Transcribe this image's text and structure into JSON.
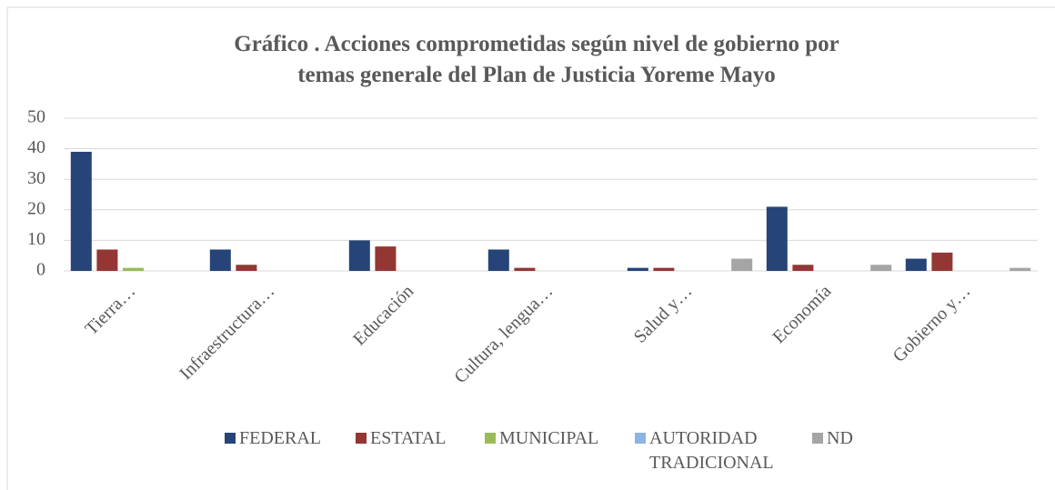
{
  "chart_data": {
    "type": "bar",
    "title": "Gráfico . Acciones comprometidas según nivel de gobierno por temas generale del  Plan de Justicia Yoreme Mayo",
    "categories": [
      "Tierra…",
      "Infraestructura…",
      "Educación",
      "Cultura, lengua…",
      "Salud y…",
      "Economía",
      "Gobierno y…"
    ],
    "series": [
      {
        "name": "FEDERAL",
        "color": "#264478",
        "values": [
          39,
          7,
          10,
          7,
          1,
          21,
          4
        ]
      },
      {
        "name": "ESTATAL",
        "color": "#943634",
        "values": [
          7,
          2,
          8,
          1,
          1,
          2,
          6
        ]
      },
      {
        "name": "MUNICIPAL",
        "color": "#9bbb59",
        "values": [
          1,
          0,
          0,
          0,
          0,
          0,
          0
        ]
      },
      {
        "name": "AUTORIDAD TRADICIONAL",
        "color": "#8db4e2",
        "values": [
          0,
          0,
          0,
          0,
          0,
          0,
          0
        ]
      },
      {
        "name": "ND",
        "color": "#a5a5a5",
        "values": [
          0,
          0,
          0,
          0,
          4,
          2,
          1
        ]
      }
    ],
    "ylim": [
      0,
      50
    ],
    "yticks": [
      0,
      10,
      20,
      30,
      40,
      50
    ],
    "grid": true,
    "legend": "bottom"
  }
}
